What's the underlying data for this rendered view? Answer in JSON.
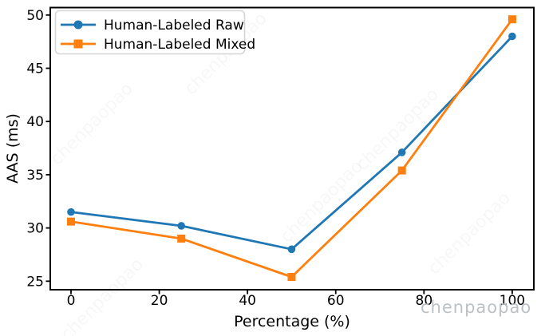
{
  "watermark": {
    "text": "chenpaopao",
    "color": "#b9bec3"
  },
  "chart_data": {
    "type": "line",
    "title": "",
    "xlabel": "Percentage (%)",
    "ylabel": "AAS (ms)",
    "x": [
      0,
      25,
      50,
      75,
      100
    ],
    "series": [
      {
        "name": "Human-Labeled Raw",
        "color": "#1f77b4",
        "marker": "circle",
        "values": [
          31.5,
          30.2,
          28.0,
          37.1,
          48.0
        ]
      },
      {
        "name": "Human-Labeled Mixed",
        "color": "#ff7f0e",
        "marker": "square",
        "values": [
          30.6,
          29.0,
          25.4,
          35.4,
          49.6
        ]
      }
    ],
    "xticks": [
      0,
      20,
      40,
      60,
      80,
      100
    ],
    "yticks": [
      25,
      30,
      35,
      40,
      45,
      50
    ],
    "xlim": [
      -4.7,
      104.9
    ],
    "ylim": [
      24.2,
      50.7
    ],
    "grid": false,
    "legend_position": "upper left"
  }
}
